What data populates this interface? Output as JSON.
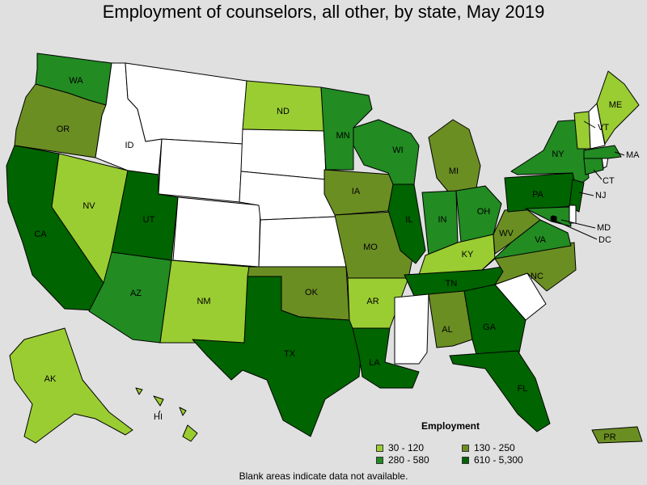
{
  "title": "Employment of counselors, all other, by state, May 2019",
  "legend": {
    "title": "Employment",
    "items": [
      {
        "label": "30 - 120",
        "color": "#9acd32"
      },
      {
        "label": "130 - 250",
        "color": "#6b8e23"
      },
      {
        "label": "280 - 580",
        "color": "#228b22"
      },
      {
        "label": "610 - 5,300",
        "color": "#006400"
      }
    ]
  },
  "note": "Blank areas indicate data not available.",
  "states": {
    "WA": "280 - 580",
    "OR": "130 - 250",
    "CA": "610 - 5,300",
    "NV": "30 - 120",
    "UT": "610 - 5,300",
    "AZ": "280 - 580",
    "NM": "30 - 120",
    "ND": "30 - 120",
    "MN": "280 - 580",
    "IA": "130 - 250",
    "MO": "130 - 250",
    "OK": "130 - 250",
    "AR": "30 - 120",
    "TX": "610 - 5,300",
    "LA": "610 - 5,300",
    "WI": "280 - 580",
    "IL": "610 - 5,300",
    "MI": "130 - 250",
    "IN": "280 - 580",
    "OH": "280 - 580",
    "KY": "30 - 120",
    "TN": "610 - 5,300",
    "AL": "130 - 250",
    "GA": "610 - 5,300",
    "FL": "610 - 5,300",
    "WV": "130 - 250",
    "VA": "280 - 580",
    "NC": "130 - 250",
    "PA": "610 - 5,300",
    "NY": "280 - 580",
    "NJ": "610 - 5,300",
    "MD": "280 - 580",
    "DC": "610 - 5,300",
    "CT": "280 - 580",
    "MA": "280 - 580",
    "VT": "30 - 120",
    "ME": "30 - 120",
    "AK": "30 - 120",
    "HI": "30 - 120",
    "PR": "130 - 250",
    "ID": "",
    "MT": "",
    "WY": "",
    "SD": "",
    "NE": "",
    "CO": "",
    "KS": "",
    "MS": "",
    "SC": "",
    "NH": "",
    "RI": "",
    "DE": ""
  }
}
